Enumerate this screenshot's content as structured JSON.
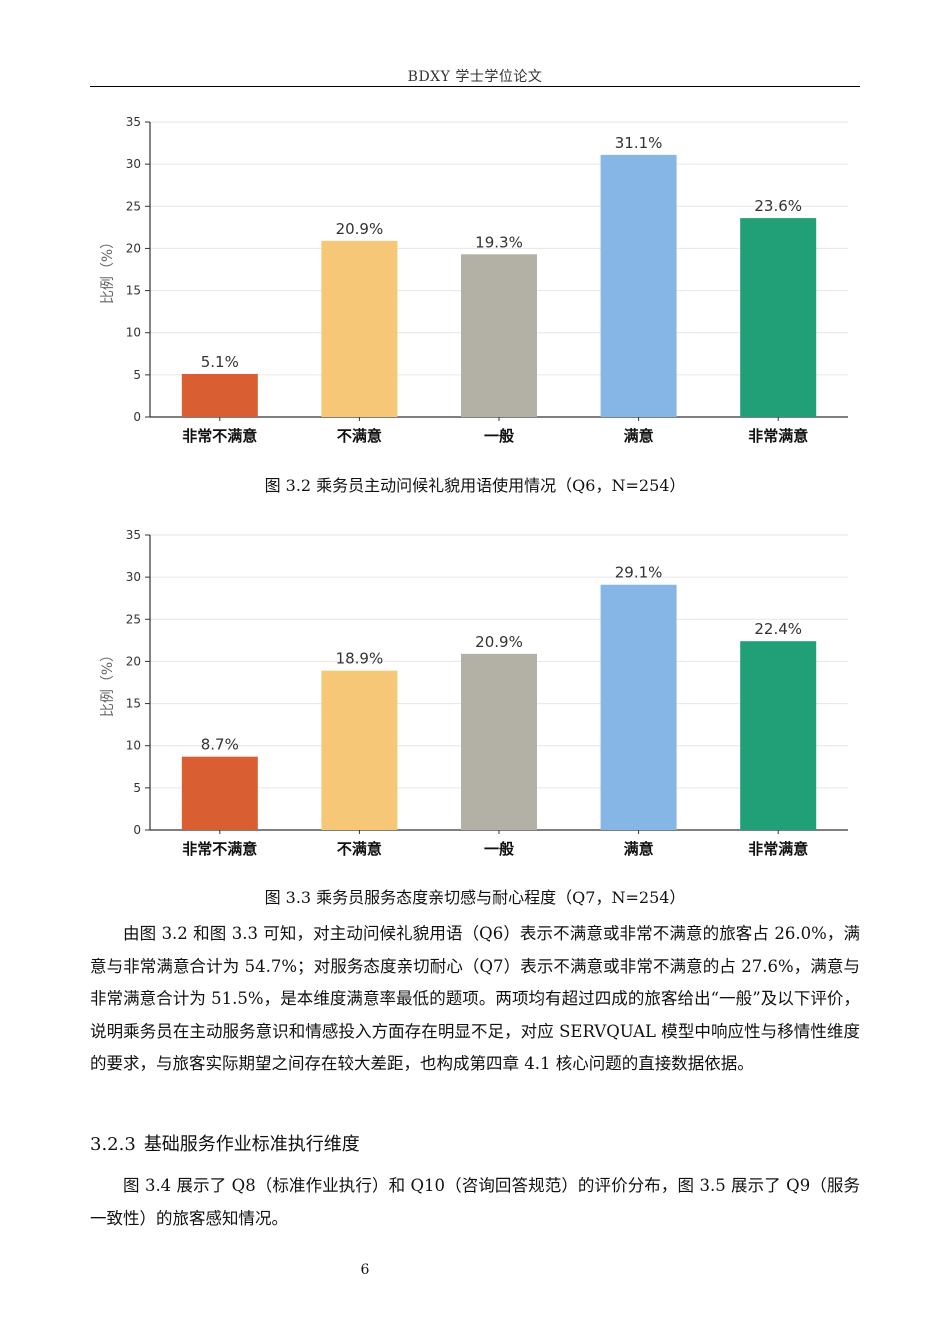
{
  "header": {
    "title": "BDXY 学士学位论文"
  },
  "charts": [
    {
      "type": "bar",
      "ylabel": "比例（%）",
      "ylim": [
        0,
        35
      ],
      "yticks": [
        0,
        5,
        10,
        15,
        20,
        25,
        30,
        35
      ],
      "categories": [
        "非常不满意",
        "不满意",
        "一般",
        "满意",
        "非常满意"
      ],
      "values": [
        5.1,
        20.9,
        19.3,
        31.1,
        23.6
      ],
      "labels": [
        "5.1%",
        "20.9%",
        "19.3%",
        "31.1%",
        "23.6%"
      ],
      "colors": [
        "#d95f33",
        "#f7c778",
        "#b3b0a6",
        "#86b6e6",
        "#21a077"
      ],
      "grid": true,
      "caption": "图 3.2 乘务员主动问候礼貌用语使用情况（Q6，N=254）"
    },
    {
      "type": "bar",
      "ylabel": "比例（%）",
      "ylim": [
        0,
        35
      ],
      "yticks": [
        0,
        5,
        10,
        15,
        20,
        25,
        30,
        35
      ],
      "categories": [
        "非常不满意",
        "不满意",
        "一般",
        "满意",
        "非常满意"
      ],
      "values": [
        8.7,
        18.9,
        20.9,
        29.1,
        22.4
      ],
      "labels": [
        "8.7%",
        "18.9%",
        "20.9%",
        "29.1%",
        "22.4%"
      ],
      "colors": [
        "#d95f33",
        "#f7c778",
        "#b3b0a6",
        "#86b6e6",
        "#21a077"
      ],
      "grid": true,
      "caption": "图 3.3 乘务员服务态度亲切感与耐心程度（Q7，N=254）"
    }
  ],
  "body": {
    "paragraph1": "由图 3.2 和图 3.3 可知，对主动问候礼貌用语（Q6）表示不满意或非常不满意的旅客占 26.0%，满意与非常满意合计为 54.7%；对服务态度亲切耐心（Q7）表示不满意或非常不满意的占 27.6%，满意与非常满意合计为 51.5%，是本维度满意率最低的题项。两项均有超过四成的旅客给出“一般”及以下评价，说明乘务员在主动服务意识和情感投入方面存在明显不足，对应 SERVQUAL 模型中响应性与移情性维度的要求，与旅客实际期望之间存在较大差距，也构成第四章 4.1 核心问题的直接数据依据。",
    "section_number": "3.2.3",
    "section_title": "基础服务作业标准执行维度",
    "paragraph2": "图 3.4 展示了 Q8（标准作业执行）和 Q10（咨询回答规范）的评价分布，图 3.5 展示了 Q9（服务一致性）的旅客感知情况。"
  },
  "page_number": "6"
}
